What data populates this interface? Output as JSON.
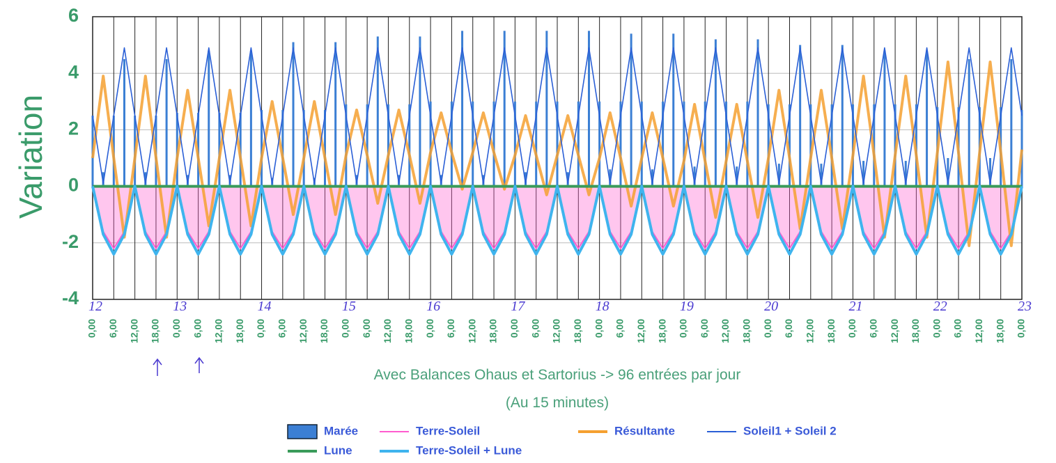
{
  "chart_data": {
    "type": "line",
    "y_label": "Variation",
    "x_label": "Avec Balances Ohaus et Sartorius -> 96 entrées par jour",
    "x_sublabel": "(Au 15 minutes)",
    "ylim": [
      -4,
      6
    ],
    "yticks": [
      -4,
      -2,
      0,
      2,
      4,
      6
    ],
    "xlim": [
      0,
      264
    ],
    "grid": true,
    "xticks": [
      {
        "value": 0,
        "label": "0,00"
      },
      {
        "value": 6,
        "label": "6,00"
      },
      {
        "value": 12,
        "label": "12,00"
      },
      {
        "value": 18,
        "label": "18,00"
      },
      {
        "value": 24,
        "label": "0,00"
      },
      {
        "value": 30,
        "label": "6,00"
      },
      {
        "value": 36,
        "label": "12,00"
      },
      {
        "value": 42,
        "label": "18,00"
      },
      {
        "value": 48,
        "label": "0,00"
      },
      {
        "value": 54,
        "label": "6,00"
      },
      {
        "value": 60,
        "label": "12,00"
      },
      {
        "value": 66,
        "label": "18,00"
      },
      {
        "value": 72,
        "label": "0,00"
      },
      {
        "value": 78,
        "label": "6,00"
      },
      {
        "value": 84,
        "label": "12,00"
      },
      {
        "value": 90,
        "label": "18,00"
      },
      {
        "value": 96,
        "label": "0,00"
      },
      {
        "value": 102,
        "label": "6,00"
      },
      {
        "value": 108,
        "label": "12,00"
      },
      {
        "value": 114,
        "label": "18,00"
      },
      {
        "value": 120,
        "label": "0,00"
      },
      {
        "value": 126,
        "label": "6,00"
      },
      {
        "value": 132,
        "label": "12,00"
      },
      {
        "value": 138,
        "label": "18,00"
      },
      {
        "value": 144,
        "label": "0,00"
      },
      {
        "value": 150,
        "label": "6,00"
      },
      {
        "value": 156,
        "label": "12,00"
      },
      {
        "value": 162,
        "label": "18,00"
      },
      {
        "value": 168,
        "label": "0,00"
      },
      {
        "value": 174,
        "label": "6,00"
      },
      {
        "value": 180,
        "label": "12,00"
      },
      {
        "value": 186,
        "label": "18,00"
      },
      {
        "value": 192,
        "label": "0,00"
      },
      {
        "value": 198,
        "label": "6,00"
      },
      {
        "value": 204,
        "label": "12,00"
      },
      {
        "value": 210,
        "label": "18,00"
      },
      {
        "value": 216,
        "label": "0,00"
      },
      {
        "value": 222,
        "label": "6,00"
      },
      {
        "value": 228,
        "label": "12,00"
      },
      {
        "value": 234,
        "label": "18,00"
      },
      {
        "value": 240,
        "label": "0,00"
      },
      {
        "value": 246,
        "label": "6,00"
      },
      {
        "value": 252,
        "label": "12,00"
      },
      {
        "value": 258,
        "label": "18,00"
      },
      {
        "value": 264,
        "label": "0,00"
      }
    ],
    "day_labels": [
      {
        "value": 0,
        "label": "12"
      },
      {
        "value": 24,
        "label": "13"
      },
      {
        "value": 48,
        "label": "14"
      },
      {
        "value": 72,
        "label": "15"
      },
      {
        "value": 96,
        "label": "16"
      },
      {
        "value": 120,
        "label": "17"
      },
      {
        "value": 144,
        "label": "18"
      },
      {
        "value": 168,
        "label": "19"
      },
      {
        "value": 192,
        "label": "20"
      },
      {
        "value": 216,
        "label": "21"
      },
      {
        "value": 240,
        "label": "22"
      },
      {
        "value": 264,
        "label": "23"
      }
    ],
    "x": [
      0,
      3,
      6,
      9,
      12,
      15,
      18,
      21,
      24,
      27,
      30,
      33,
      36,
      39,
      42,
      45,
      48,
      51,
      54,
      57,
      60,
      63,
      66,
      69,
      72,
      75,
      78,
      81,
      84,
      87,
      90,
      93,
      96,
      99,
      102,
      105,
      108,
      111,
      114,
      117,
      120,
      123,
      126,
      129,
      132,
      135,
      138,
      141,
      144,
      147,
      150,
      153,
      156,
      159,
      162,
      165,
      168,
      171,
      174,
      177,
      180,
      183,
      186,
      189,
      192,
      195,
      198,
      201,
      204,
      207,
      210,
      213,
      216,
      219,
      222,
      225,
      228,
      231,
      234,
      237,
      240,
      243,
      246,
      249,
      252,
      255,
      258,
      261,
      264
    ],
    "series": [
      {
        "name": "Marée",
        "type": "bar",
        "color": "#3b7fd4",
        "values": [
          2.5,
          0.5,
          2.5,
          4.5,
          2.5,
          0.5,
          2.5,
          4.5,
          2.6,
          0.4,
          2.6,
          4.8,
          2.6,
          0.4,
          2.6,
          4.8,
          2.7,
          0.3,
          2.7,
          5.1,
          2.7,
          0.3,
          2.7,
          5.1,
          2.9,
          0.4,
          2.9,
          5.3,
          2.9,
          0.4,
          2.9,
          5.3,
          3.0,
          0.4,
          3.0,
          5.5,
          3.0,
          0.4,
          3.0,
          5.5,
          3.0,
          0.5,
          3.0,
          5.5,
          3.0,
          0.5,
          3.0,
          5.5,
          3.0,
          0.6,
          3.0,
          5.4,
          3.0,
          0.6,
          3.0,
          5.4,
          3.0,
          0.7,
          3.0,
          5.2,
          3.0,
          0.7,
          3.0,
          5.2,
          2.9,
          0.8,
          2.9,
          5.0,
          2.9,
          0.8,
          2.9,
          5.0,
          2.9,
          0.9,
          2.9,
          4.8,
          2.9,
          0.9,
          2.9,
          4.8,
          2.8,
          1.0,
          2.8,
          4.5,
          2.8,
          1.0,
          2.8,
          4.5,
          2.7
        ]
      },
      {
        "name": "Terre-Soleil",
        "type": "line",
        "fill": true,
        "color": "#ff5ccf",
        "values": [
          0,
          -1.6,
          -2.2,
          -1.6,
          0,
          -1.6,
          -2.2,
          -1.6,
          0,
          -1.6,
          -2.2,
          -1.6,
          0,
          -1.6,
          -2.2,
          -1.6,
          0,
          -1.6,
          -2.2,
          -1.6,
          0,
          -1.6,
          -2.2,
          -1.6,
          0,
          -1.6,
          -2.2,
          -1.6,
          0,
          -1.6,
          -2.2,
          -1.6,
          0,
          -1.6,
          -2.2,
          -1.6,
          0,
          -1.6,
          -2.2,
          -1.6,
          0,
          -1.6,
          -2.2,
          -1.6,
          0,
          -1.6,
          -2.2,
          -1.6,
          0,
          -1.6,
          -2.2,
          -1.6,
          0,
          -1.6,
          -2.2,
          -1.6,
          0,
          -1.6,
          -2.2,
          -1.6,
          0,
          -1.6,
          -2.2,
          -1.6,
          0,
          -1.6,
          -2.2,
          -1.6,
          0,
          -1.6,
          -2.2,
          -1.6,
          0,
          -1.6,
          -2.2,
          -1.6,
          0,
          -1.6,
          -2.2,
          -1.6,
          0,
          -1.6,
          -2.2,
          -1.6,
          0,
          -1.6,
          -2.2,
          -1.6,
          0
        ]
      },
      {
        "name": "Résultante",
        "type": "line",
        "color": "#f5a030",
        "values": [
          1.0,
          3.9,
          1.0,
          -1.8,
          1.0,
          3.9,
          1.0,
          -1.8,
          1.0,
          3.4,
          1.0,
          -1.4,
          1.0,
          3.4,
          1.0,
          -1.4,
          1.0,
          3.0,
          1.0,
          -1.0,
          1.0,
          3.0,
          1.0,
          -1.0,
          1.1,
          2.7,
          1.1,
          -0.6,
          1.1,
          2.7,
          1.1,
          -0.6,
          1.2,
          2.6,
          1.2,
          -0.1,
          1.2,
          2.6,
          1.2,
          -0.1,
          1.1,
          2.5,
          1.1,
          -0.3,
          1.1,
          2.5,
          1.1,
          -0.3,
          1.0,
          2.6,
          1.0,
          -0.7,
          1.0,
          2.6,
          1.0,
          -0.7,
          0.9,
          2.9,
          0.9,
          -1.1,
          0.9,
          2.9,
          0.9,
          -1.1,
          1.0,
          3.4,
          1.0,
          -1.5,
          1.0,
          3.4,
          1.0,
          -1.5,
          1.1,
          3.9,
          1.1,
          -1.8,
          1.1,
          3.9,
          1.1,
          -1.8,
          1.2,
          4.4,
          1.2,
          -2.1,
          1.2,
          4.4,
          1.2,
          -2.1,
          1.3
        ]
      },
      {
        "name": "Soleil1 + Soleil 2",
        "type": "line",
        "color": "#2a5fd6",
        "values": [
          2.5,
          0.1,
          2.5,
          4.9,
          2.5,
          0.1,
          2.5,
          4.9,
          2.5,
          0.1,
          2.5,
          4.9,
          2.5,
          0.1,
          2.5,
          4.9,
          2.5,
          0.1,
          2.5,
          4.9,
          2.5,
          0.1,
          2.5,
          4.9,
          2.5,
          0.1,
          2.5,
          4.9,
          2.5,
          0.1,
          2.5,
          4.9,
          2.5,
          0.1,
          2.5,
          4.9,
          2.5,
          0.1,
          2.5,
          4.9,
          2.5,
          0.1,
          2.5,
          4.9,
          2.5,
          0.1,
          2.5,
          4.9,
          2.5,
          0.1,
          2.5,
          4.9,
          2.5,
          0.1,
          2.5,
          4.9,
          2.5,
          0.1,
          2.5,
          4.9,
          2.5,
          0.1,
          2.5,
          4.9,
          2.5,
          0.1,
          2.5,
          4.9,
          2.5,
          0.1,
          2.5,
          4.9,
          2.5,
          0.1,
          2.5,
          4.9,
          2.5,
          0.1,
          2.5,
          4.9,
          2.5,
          0.1,
          2.5,
          4.9,
          2.5,
          0.1,
          2.5,
          4.9,
          2.5
        ]
      },
      {
        "name": "Lune",
        "type": "line",
        "color": "#3a9b5a",
        "values": [
          0,
          0,
          0,
          0,
          0,
          0,
          0,
          0,
          0,
          0,
          0,
          0,
          0,
          0,
          0,
          0,
          0,
          0,
          0,
          0,
          0,
          0,
          0,
          0,
          0,
          0,
          0,
          0,
          0,
          0,
          0,
          0,
          0,
          0,
          0,
          0,
          0,
          0,
          0,
          0,
          0,
          0,
          0,
          0,
          0,
          0,
          0,
          0,
          0,
          0,
          0,
          0,
          0,
          0,
          0,
          0,
          0,
          0,
          0,
          0,
          0,
          0,
          0,
          0,
          0,
          0,
          0,
          0,
          0,
          0,
          0,
          0,
          0,
          0,
          0,
          0,
          0,
          0,
          0,
          0,
          0,
          0,
          0,
          0,
          0,
          0,
          0,
          0,
          0
        ]
      },
      {
        "name": "Terre-Soleil + Lune",
        "type": "line",
        "color": "#3fb4ee",
        "values": [
          0,
          -1.7,
          -2.4,
          -1.7,
          0,
          -1.7,
          -2.4,
          -1.7,
          0,
          -1.7,
          -2.4,
          -1.7,
          0,
          -1.7,
          -2.4,
          -1.7,
          0,
          -1.7,
          -2.4,
          -1.7,
          0,
          -1.7,
          -2.4,
          -1.7,
          0,
          -1.7,
          -2.4,
          -1.7,
          0,
          -1.7,
          -2.4,
          -1.7,
          0,
          -1.7,
          -2.4,
          -1.7,
          0,
          -1.7,
          -2.4,
          -1.7,
          0,
          -1.7,
          -2.4,
          -1.7,
          0,
          -1.7,
          -2.4,
          -1.7,
          0,
          -1.7,
          -2.4,
          -1.7,
          0,
          -1.7,
          -2.4,
          -1.7,
          0,
          -1.7,
          -2.4,
          -1.7,
          0,
          -1.7,
          -2.4,
          -1.7,
          0,
          -1.7,
          -2.4,
          -1.7,
          0,
          -1.7,
          -2.4,
          -1.7,
          0,
          -1.7,
          -2.4,
          -1.7,
          0,
          -1.7,
          -2.4,
          -1.7,
          0,
          -1.7,
          -2.4,
          -1.7,
          0,
          -1.7,
          -2.4,
          -1.7,
          0
        ]
      }
    ]
  }
}
